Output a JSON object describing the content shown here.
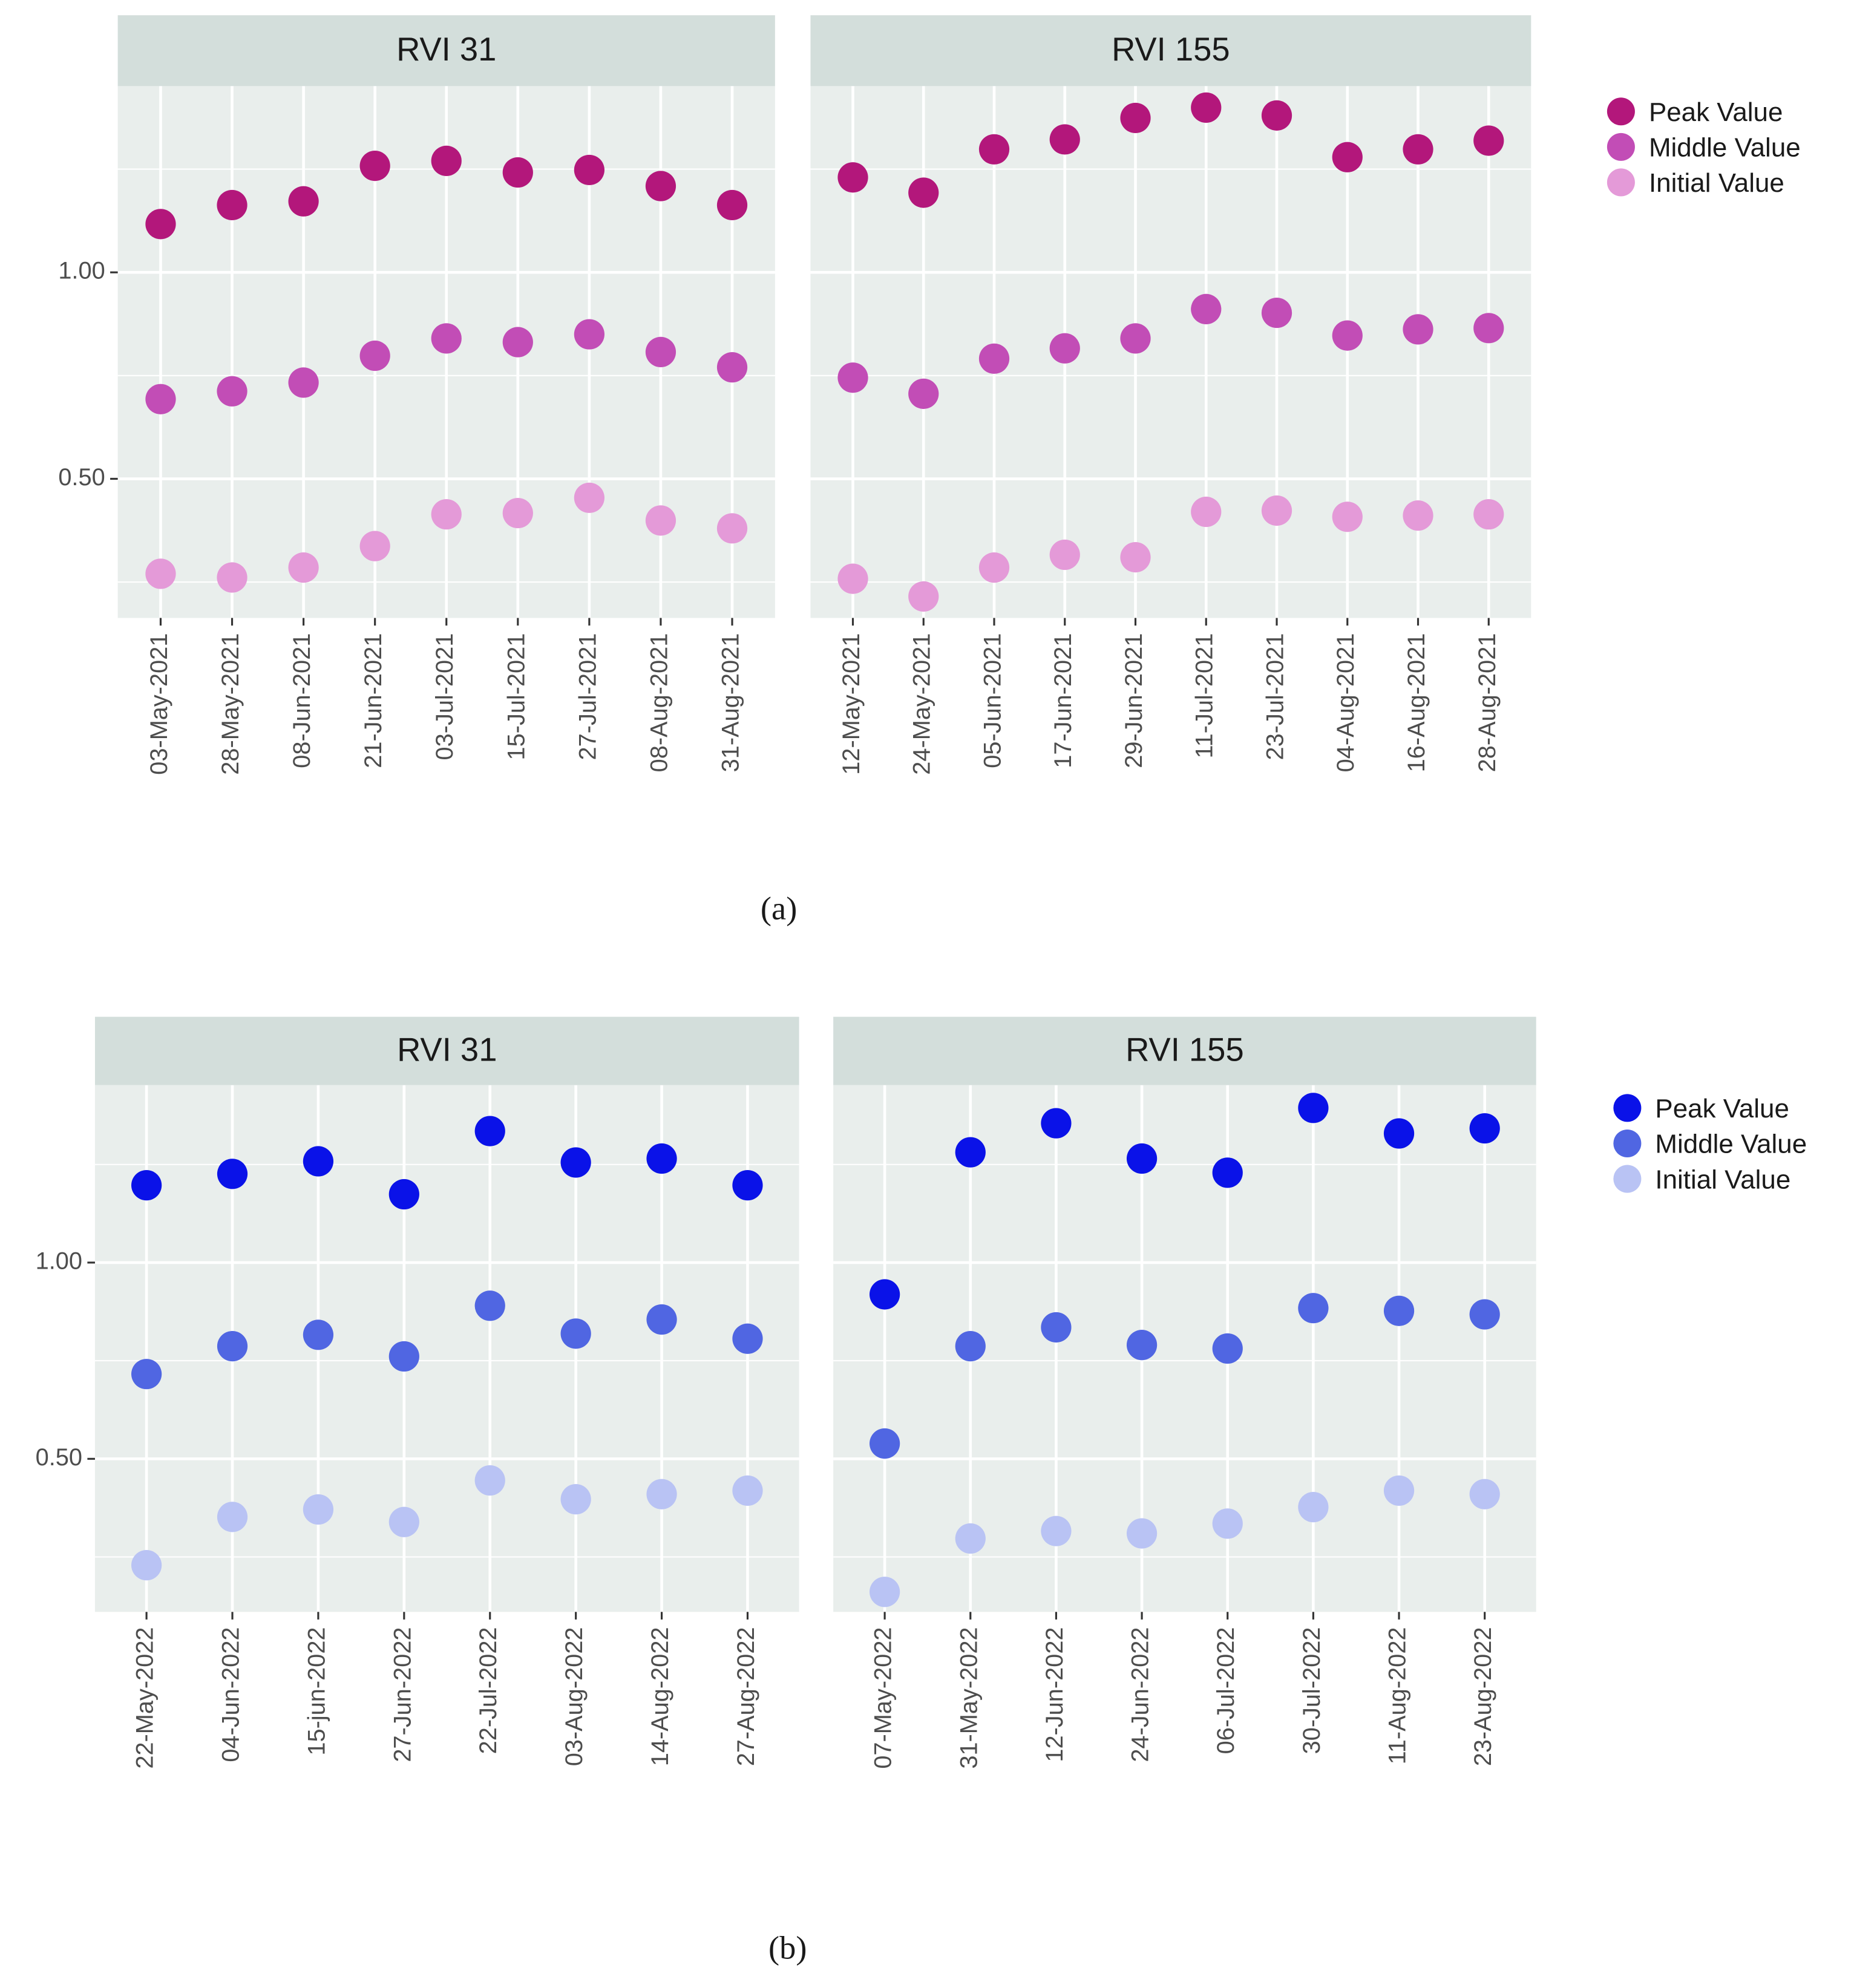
{
  "figure_labels": [
    "(a)",
    "(b)"
  ],
  "chart_data": [
    {
      "type": "scatter",
      "title": "RVI 31",
      "categories": [
        "03-May-2021",
        "28-May-2021",
        "08-Jun-2021",
        "21-Jun-2021",
        "03-Jul-2021",
        "15-Jul-2021",
        "27-Jul-2021",
        "08-Aug-2021",
        "31-Aug-2021"
      ],
      "series": [
        {
          "name": "Peak Value",
          "color": "#b3177b",
          "values": [
            1.117,
            1.163,
            1.172,
            1.258,
            1.27,
            1.242,
            1.248,
            1.209,
            1.163
          ]
        },
        {
          "name": "Middle Value",
          "color": "#c24db6",
          "values": [
            0.693,
            0.712,
            0.733,
            0.798,
            0.84,
            0.831,
            0.85,
            0.807,
            0.77
          ]
        },
        {
          "name": "Initial Value",
          "color": "#e49ad8",
          "values": [
            0.27,
            0.261,
            0.285,
            0.337,
            0.414,
            0.417,
            0.454,
            0.399,
            0.38
          ]
        }
      ],
      "ylim": [
        0.163,
        1.451
      ],
      "yticks": [
        {
          "value": 0.5,
          "label": "0.50"
        },
        {
          "value": 1.0,
          "label": "1.00"
        }
      ],
      "minor_yticks": [
        0.25,
        0.75,
        1.25
      ],
      "grid": true
    },
    {
      "type": "scatter",
      "title": "RVI 155",
      "categories": [
        "12-May-2021",
        "24-May-2021",
        "05-Jun-2021",
        "17-Jun-2021",
        "29-Jun-2021",
        "11-Jul-2021",
        "23-Jul-2021",
        "04-Aug-2021",
        "16-Aug-2021",
        "28-Aug-2021"
      ],
      "series": [
        {
          "name": "Peak Value",
          "color": "#b3177b",
          "values": [
            1.23,
            1.193,
            1.298,
            1.322,
            1.374,
            1.399,
            1.38,
            1.279,
            1.298,
            1.319
          ]
        },
        {
          "name": "Middle Value",
          "color": "#c24db6",
          "values": [
            0.745,
            0.706,
            0.791,
            0.816,
            0.84,
            0.911,
            0.902,
            0.847,
            0.862,
            0.865
          ]
        },
        {
          "name": "Initial Value",
          "color": "#e49ad8",
          "values": [
            0.258,
            0.215,
            0.285,
            0.316,
            0.31,
            0.42,
            0.423,
            0.408,
            0.411,
            0.414
          ]
        }
      ],
      "ylim": [
        0.163,
        1.451
      ],
      "minor_yticks": [
        0.25,
        0.75,
        1.25
      ],
      "grid": true,
      "legend": "right"
    },
    {
      "type": "scatter",
      "title": "RVI 31",
      "categories": [
        "22-May-2022",
        "04-Jun-2022",
        "15-jun-2022",
        "27-Jun-2022",
        "22-Jul-2022",
        "03-Aug-2022",
        "14-Aug-2022",
        "27-Aug-2022"
      ],
      "series": [
        {
          "name": "Peak Value",
          "color": "#0a12e8",
          "values": [
            1.197,
            1.226,
            1.258,
            1.174,
            1.335,
            1.255,
            1.265,
            1.197
          ]
        },
        {
          "name": "Middle Value",
          "color": "#5066e2",
          "values": [
            0.716,
            0.787,
            0.816,
            0.761,
            0.89,
            0.819,
            0.855,
            0.806
          ]
        },
        {
          "name": "Initial Value",
          "color": "#b9c3f4",
          "values": [
            0.229,
            0.352,
            0.371,
            0.339,
            0.445,
            0.397,
            0.41,
            0.419
          ]
        }
      ],
      "ylim": [
        0.11,
        1.452
      ],
      "yticks": [
        {
          "value": 0.5,
          "label": "0.50"
        },
        {
          "value": 1.0,
          "label": "1.00"
        }
      ],
      "minor_yticks": [
        0.25,
        0.75,
        1.25
      ],
      "grid": true
    },
    {
      "type": "scatter",
      "title": "RVI 155",
      "categories": [
        "07-May-2022",
        "31-May-2022",
        "12-Jun-2022",
        "24-Jun-2022",
        "06-Jul-2022",
        "30-Jul-2022",
        "11-Aug-2022",
        "23-Aug-2022"
      ],
      "series": [
        {
          "name": "Peak Value",
          "color": "#0a12e8",
          "values": [
            0.919,
            1.281,
            1.355,
            1.265,
            1.229,
            1.394,
            1.329,
            1.342
          ]
        },
        {
          "name": "Middle Value",
          "color": "#5066e2",
          "values": [
            0.539,
            0.787,
            0.835,
            0.79,
            0.781,
            0.884,
            0.877,
            0.868
          ]
        },
        {
          "name": "Initial Value",
          "color": "#b9c3f4",
          "values": [
            0.161,
            0.297,
            0.316,
            0.31,
            0.335,
            0.377,
            0.419,
            0.41
          ]
        }
      ],
      "ylim": [
        0.11,
        1.452
      ],
      "minor_yticks": [
        0.25,
        0.75,
        1.25
      ],
      "grid": true,
      "legend": "right"
    }
  ]
}
